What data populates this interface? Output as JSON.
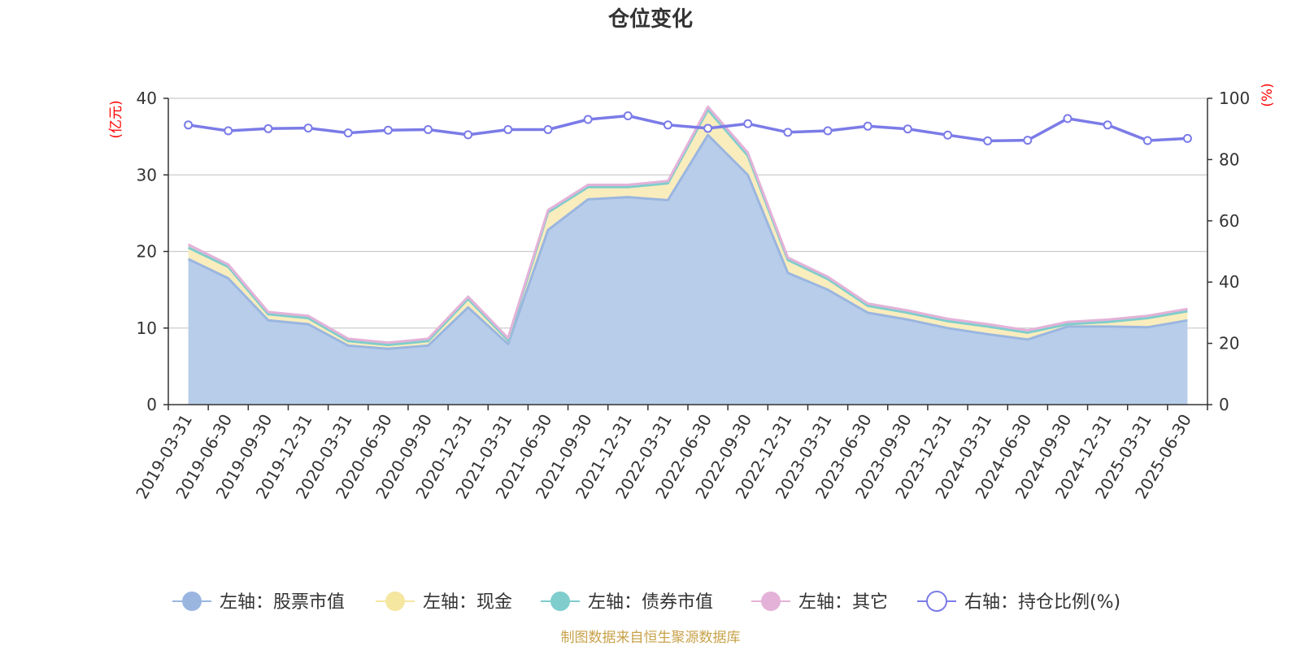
{
  "chart_data": {
    "type": "area",
    "title": "仓位变化",
    "source_note": "制图数据来自恒生聚源数据库",
    "categories": [
      "2019-03-31",
      "2019-06-30",
      "2019-09-30",
      "2019-12-31",
      "2020-03-31",
      "2020-06-30",
      "2020-09-30",
      "2020-12-31",
      "2021-03-31",
      "2021-06-30",
      "2021-09-30",
      "2021-12-31",
      "2022-03-31",
      "2022-06-30",
      "2022-09-30",
      "2022-12-31",
      "2023-03-31",
      "2023-06-30",
      "2023-09-30",
      "2023-12-31",
      "2024-03-31",
      "2024-06-30",
      "2024-09-30",
      "2024-12-31",
      "2025-03-31",
      "2025-06-30"
    ],
    "left_axis": {
      "name": "(亿元)",
      "ylim": [
        0,
        40
      ],
      "ticks": [
        0,
        10,
        20,
        30,
        40
      ]
    },
    "right_axis": {
      "name": "(%)",
      "ylim": [
        0,
        100
      ],
      "ticks": [
        0,
        20,
        40,
        60,
        80,
        100
      ]
    },
    "series": [
      {
        "name": "左轴：股票市值",
        "axis": "left",
        "stacked": true,
        "color": "#9ab6e0",
        "fill": "#b8cdea",
        "values": [
          19.0,
          16.5,
          11.0,
          10.5,
          7.7,
          7.3,
          7.7,
          12.7,
          7.9,
          22.8,
          26.8,
          27.1,
          26.7,
          35.2,
          30.0,
          17.2,
          15.0,
          12.0,
          11.1,
          10.0,
          9.2,
          8.5,
          10.2,
          10.2,
          10.1,
          11.0
        ]
      },
      {
        "name": "左轴：现金",
        "axis": "left",
        "stacked": true,
        "color": "#f5e6a0",
        "fill": "#faedbd",
        "values": [
          1.5,
          1.5,
          0.8,
          0.8,
          0.6,
          0.5,
          0.6,
          1.1,
          0.5,
          2.3,
          1.6,
          1.3,
          2.2,
          3.3,
          2.5,
          1.7,
          1.4,
          0.9,
          0.9,
          0.9,
          1.0,
          0.9,
          0.3,
          0.6,
          1.2,
          1.2
        ]
      },
      {
        "name": "左轴：债券市值",
        "axis": "left",
        "stacked": true,
        "color": "#7fcdcd",
        "fill": "#a6dede",
        "values": [
          0,
          0,
          0,
          0,
          0,
          0,
          0,
          0,
          0,
          0,
          0,
          0,
          0,
          0,
          0,
          0,
          0,
          0,
          0,
          0,
          0,
          0,
          0,
          0,
          0,
          0
        ]
      },
      {
        "name": "左轴：其它",
        "axis": "left",
        "stacked": true,
        "color": "#e4b2d8",
        "fill": "#efcbe6",
        "values": [
          0.4,
          0.3,
          0.3,
          0.3,
          0.3,
          0.3,
          0.3,
          0.3,
          0.3,
          0.3,
          0.3,
          0.3,
          0.3,
          0.4,
          0.4,
          0.3,
          0.3,
          0.3,
          0.3,
          0.3,
          0.3,
          0.3,
          0.3,
          0.3,
          0.3,
          0.3
        ]
      },
      {
        "name": "右轴：持仓比例(%)",
        "axis": "right",
        "type": "line",
        "color": "#7b7be8",
        "values": [
          91.3,
          89.4,
          90.1,
          90.3,
          88.7,
          89.6,
          89.8,
          88.1,
          89.8,
          89.8,
          93.1,
          94.3,
          91.3,
          90.2,
          91.7,
          88.9,
          89.4,
          90.9,
          90.0,
          88.0,
          86.1,
          86.3,
          93.4,
          91.3,
          86.2,
          86.9
        ]
      }
    ],
    "legend_position": "bottom",
    "grid": true
  }
}
